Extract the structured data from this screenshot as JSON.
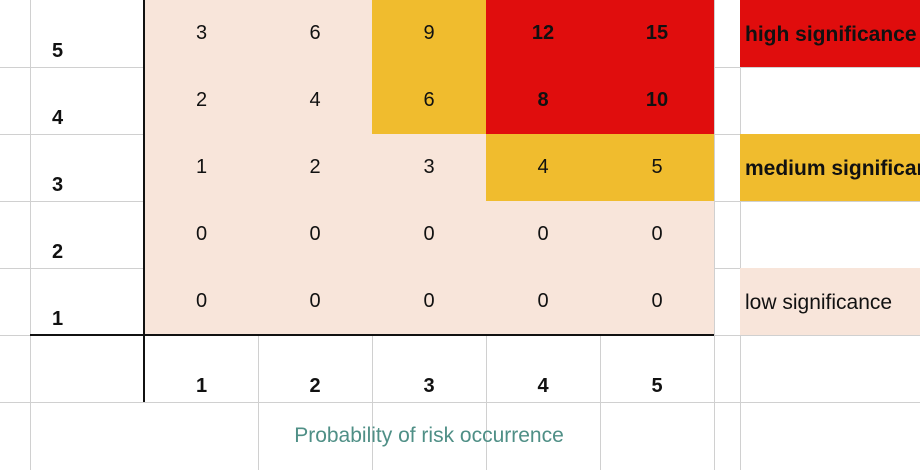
{
  "matrix": {
    "rows": [
      {
        "impact": "5",
        "values": [
          "3",
          "6",
          "9",
          "12",
          "15"
        ],
        "levels": [
          "low",
          "low",
          "medium",
          "high",
          "high"
        ]
      },
      {
        "impact": "4",
        "values": [
          "2",
          "4",
          "6",
          "8",
          "10"
        ],
        "levels": [
          "low",
          "low",
          "medium",
          "high",
          "high"
        ]
      },
      {
        "impact": "3",
        "values": [
          "1",
          "2",
          "3",
          "4",
          "5"
        ],
        "levels": [
          "low",
          "low",
          "low",
          "medium",
          "medium"
        ]
      },
      {
        "impact": "2",
        "values": [
          "0",
          "0",
          "0",
          "0",
          "0"
        ],
        "levels": [
          "low",
          "low",
          "low",
          "low",
          "low"
        ]
      },
      {
        "impact": "1",
        "values": [
          "0",
          "0",
          "0",
          "0",
          "0"
        ],
        "levels": [
          "low",
          "low",
          "low",
          "low",
          "low"
        ]
      }
    ],
    "probability_labels": [
      "1",
      "2",
      "3",
      "4",
      "5"
    ],
    "x_axis_label": "Probability of risk occurrence"
  },
  "legend": {
    "high": "high significance",
    "medium": "medium significance",
    "low": "low significance"
  },
  "colors": {
    "high": "#e00d0d",
    "medium": "#f0bc2e",
    "low": "#f8e5da",
    "gridline": "#d0d0d0",
    "axis": "#111111",
    "axis_label": "#4f8f86"
  }
}
